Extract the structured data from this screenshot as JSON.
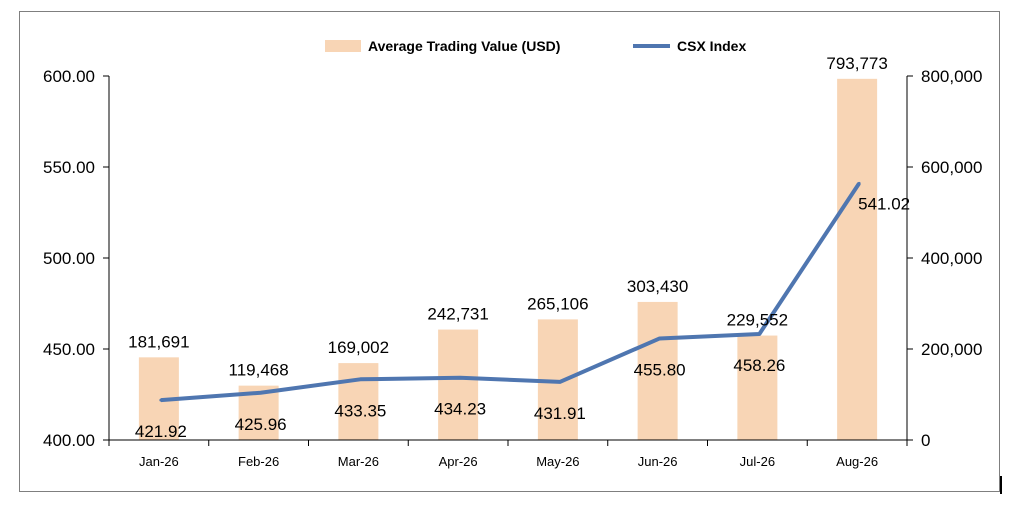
{
  "chart_data": {
    "type": "bar+line",
    "categories": [
      "Jan-26",
      "Feb-26",
      "Mar-26",
      "Apr-26",
      "May-26",
      "Jun-26",
      "Jul-26",
      "Aug-26"
    ],
    "series": [
      {
        "name": "Average Trading Value (USD)",
        "type": "bar",
        "axis": "right",
        "color": "#f8d5b5",
        "values": [
          181691,
          119468,
          169002,
          242731,
          265106,
          303430,
          229552,
          793773
        ],
        "labels": [
          "181,691",
          "119,468",
          "169,002",
          "242,731",
          "265,106",
          "303,430",
          "229,552",
          "793,773"
        ]
      },
      {
        "name": "CSX Index",
        "type": "line",
        "axis": "left",
        "color": "#4f76b0",
        "values": [
          421.92,
          425.96,
          433.35,
          434.23,
          431.91,
          455.8,
          458.26,
          541.02
        ],
        "labels": [
          "421.92",
          "425.96",
          "433.35",
          "434.23",
          "431.91",
          "455.80",
          "458.26",
          "541.02"
        ]
      }
    ],
    "y_left": {
      "ylim": [
        400,
        600
      ],
      "ticks": [
        "400.00",
        "450.00",
        "500.00",
        "550.00",
        "600.00"
      ]
    },
    "y_right": {
      "ylim": [
        0,
        800000
      ],
      "ticks": [
        "0",
        "200,000",
        "400,000",
        "600,000",
        "800,000"
      ]
    },
    "grid": false,
    "legend": "top-center"
  }
}
